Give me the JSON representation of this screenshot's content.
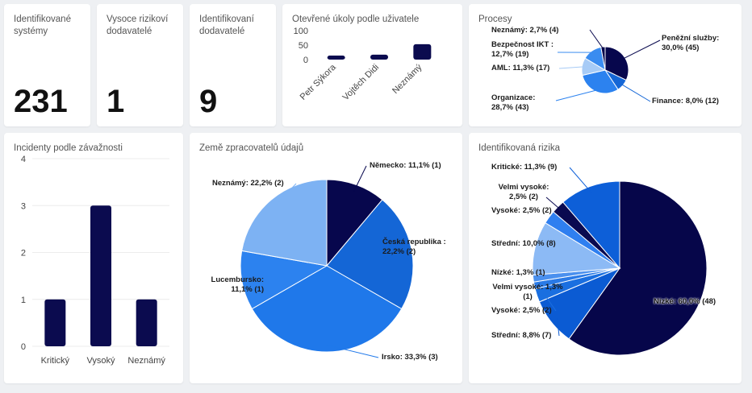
{
  "kpis": [
    {
      "title": "Identifikované systémy",
      "value": 231
    },
    {
      "title": "Vysoce rizikoví dodavatelé",
      "value": 1
    },
    {
      "title": "Identifikovaní dodavatelé",
      "value": 9
    }
  ],
  "chart_data": [
    {
      "type": "bar",
      "title": "Otevřené úkoly podle uživatele",
      "categories": [
        "Petr Sýkora",
        "Vojtěch Didi",
        "Neznámý"
      ],
      "values": [
        14,
        17,
        53
      ],
      "color": "#0b0b4f",
      "ylim": [
        0,
        100
      ],
      "yticks": [
        0,
        50,
        100
      ],
      "grid": false
    },
    {
      "type": "pie",
      "title": "Procesy",
      "values": [
        30.0,
        8.0,
        28.7,
        11.3,
        12.7,
        2.7
      ],
      "value_labels": [
        "Peněžní služby: 30,0% (45)",
        "Finance: 8,0% (12)",
        "Organizace: 28,7% (43)",
        "AML: 11,3% (17)",
        "Bezpečnost IKT : 12,7% (19)",
        "Neznámý: 2,7% (4)"
      ],
      "colors": [
        "#07074d",
        "#1466d6",
        "#2c82ef",
        "#a7cbf6",
        "#3a8cf0",
        "#07074d"
      ]
    },
    {
      "type": "bar",
      "title": "Incidenty podle závažnosti",
      "categories": [
        "Kritický",
        "Vysoký",
        "Neznámý"
      ],
      "values": [
        1,
        3,
        1
      ],
      "color": "#0b0b4f",
      "ylim": [
        0,
        4
      ],
      "yticks": [
        0,
        1,
        2,
        3,
        4
      ],
      "grid": true
    },
    {
      "type": "pie",
      "title": "Země zpracovatelů údajů",
      "values": [
        11.1,
        22.2,
        33.3,
        11.1,
        22.2
      ],
      "value_labels": [
        "Německo: 11,1% (1)",
        "Česká republika : 22,2% (2)",
        "Irsko: 33,3% (3)",
        "Lucembursko: 11,1% (1)",
        "Neznámý: 22,2% (2)"
      ],
      "colors": [
        "#07074d",
        "#1466d6",
        "#1f78ea",
        "#2c82ef",
        "#7db2f3"
      ]
    },
    {
      "type": "pie",
      "title": "Identifikovaná rizika",
      "values": [
        60.0,
        8.8,
        2.5,
        1.3,
        1.3,
        10.0,
        2.5,
        2.5,
        11.3
      ],
      "value_labels": [
        "Nízké: 60,0% (48)",
        "Střední: 8,8% (7)",
        "Vysoké: 2,5% (2)",
        "Velmi vysoké: 1,3% (1)",
        "Nízké: 1,3% (1)",
        "Střední: 10,0% (8)",
        "Vysoké: 2,5% (2)",
        "Velmi vysoké: 2,5% (2)",
        "Kritické: 11,3% (9)"
      ],
      "colors": [
        "#06064a",
        "#0b5bd3",
        "#1a6fe0",
        "#2a7ae6",
        "#4a90ee",
        "#8cbaf5",
        "#2f7ff0",
        "#0a0a50",
        "#0d5fd8"
      ]
    }
  ]
}
